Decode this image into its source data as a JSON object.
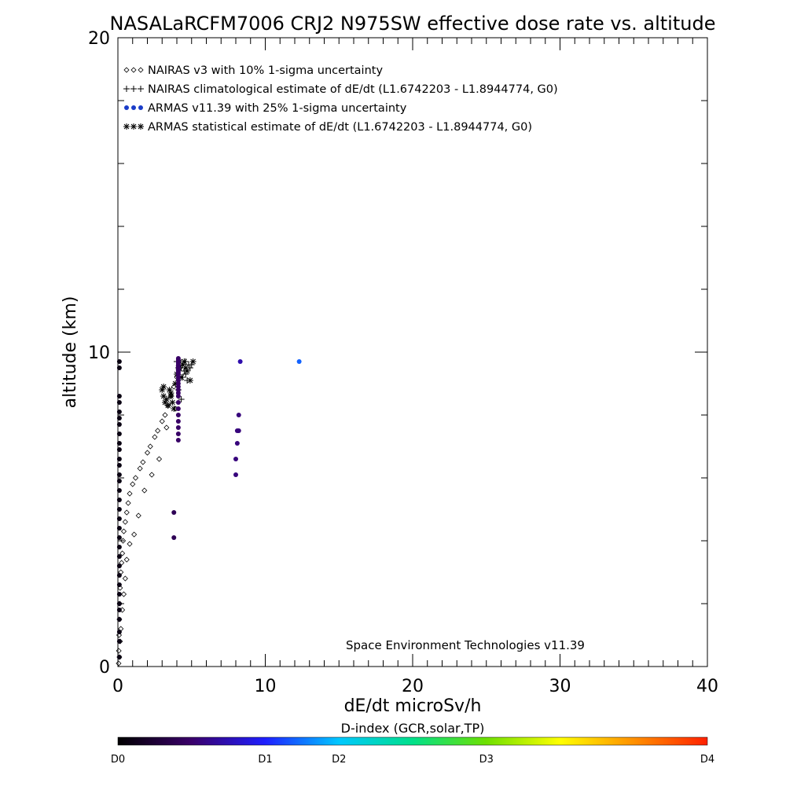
{
  "chart_data": {
    "type": "scatter",
    "title": "NASALaRCFM7006  CRJ2 N975SW effective dose rate vs. altitude",
    "xlabel": "dE/dt microSv/h",
    "ylabel": "altitude (km)",
    "xlim": [
      0,
      40
    ],
    "ylim": [
      0,
      20
    ],
    "x_ticks": [
      0,
      10,
      20,
      30,
      40
    ],
    "x_tick_labels": [
      "0",
      "10",
      "20",
      "30",
      "40"
    ],
    "y_ticks": [
      0,
      10,
      20
    ],
    "y_tick_labels": [
      "0",
      "10",
      "20"
    ],
    "grid": false,
    "legend_position": "top-left",
    "annotation": "Space Environment Technologies v11.39",
    "legend": [
      {
        "marker": "diamond",
        "symbol": "◇◇◇",
        "label": "NAIRAS v3 with 10% 1-sigma uncertainty"
      },
      {
        "marker": "plus",
        "symbol": "+++",
        "label": "NAIRAS climatological estimate of dE/dt (L1.6742203 - L1.8944774, G0)"
      },
      {
        "marker": "dot",
        "symbol": "●●●",
        "label": "ARMAS v11.39 with 25% 1-sigma uncertainty"
      },
      {
        "marker": "asterisk",
        "symbol": "***",
        "label": "ARMAS statistical estimate of dE/dt (L1.6742203 - L1.8944774, G0)"
      }
    ],
    "colorbar": {
      "title": "D-index (GCR,solar,TP)",
      "labels": [
        {
          "text": "D0",
          "value": 0
        },
        {
          "text": "D1",
          "value": 0.25
        },
        {
          "text": "D2",
          "value": 0.375
        },
        {
          "text": "D3",
          "value": 0.625
        },
        {
          "text": "D4",
          "value": 1
        }
      ],
      "colors": [
        "#000000",
        "#3a006a",
        "#1e1eff",
        "#00c8ff",
        "#00e08a",
        "#6ee000",
        "#ffff00",
        "#ff9000",
        "#ff2000"
      ]
    },
    "series": [
      {
        "name": "NAIRAS v3 with 10% 1-sigma uncertainty",
        "marker": "diamond",
        "x": [
          0.05,
          0.06,
          0.08,
          0.1,
          0.12,
          0.15,
          0.2,
          0.25,
          0.3,
          0.35,
          0.4,
          0.5,
          0.6,
          0.7,
          0.8,
          1.0,
          1.2,
          1.5,
          1.7,
          2.0,
          2.2,
          2.5,
          2.7,
          3.0,
          3.2,
          3.4,
          3.6,
          3.8,
          4.0,
          4.2,
          0.1,
          0.15,
          0.2,
          0.3,
          0.4,
          0.5,
          0.6,
          0.8,
          1.1,
          1.4,
          1.8,
          2.3,
          2.8,
          3.3,
          3.9
        ],
        "y": [
          0.1,
          0.5,
          1.0,
          1.5,
          2.0,
          2.5,
          3.0,
          3.3,
          3.6,
          4.0,
          4.3,
          4.6,
          4.9,
          5.2,
          5.5,
          5.8,
          6.0,
          6.3,
          6.5,
          6.8,
          7.0,
          7.3,
          7.5,
          7.8,
          8.0,
          8.3,
          8.6,
          8.9,
          9.2,
          9.5,
          0.3,
          0.8,
          1.2,
          1.8,
          2.3,
          2.8,
          3.4,
          3.9,
          4.2,
          4.8,
          5.6,
          6.1,
          6.6,
          7.6,
          8.2
        ]
      },
      {
        "name": "NAIRAS climatological estimate of dE/dt (L1.6742203 - L1.8944774, G0)",
        "marker": "plus",
        "x": [
          4.0,
          4.2,
          4.3,
          4.5,
          4.6,
          4.8,
          4.9,
          5.0,
          4.4,
          4.7,
          4.1,
          4.3,
          4.6
        ],
        "y": [
          9.7,
          9.6,
          9.5,
          9.4,
          9.7,
          9.6,
          9.5,
          9.6,
          9.2,
          9.1,
          8.8,
          8.5,
          9.3
        ]
      },
      {
        "name": "ARMAS statistical estimate of dE/dt (L1.6742203 - L1.8944774, G0)",
        "marker": "asterisk",
        "x": [
          3.0,
          3.1,
          3.2,
          3.3,
          3.5,
          3.6,
          3.7,
          3.8,
          4.0,
          4.1,
          4.2,
          4.4,
          4.5,
          4.7,
          4.9,
          5.1,
          3.4,
          3.9,
          4.3,
          4.6,
          3.1,
          3.6
        ],
        "y": [
          8.8,
          8.6,
          8.4,
          8.5,
          8.8,
          8.6,
          8.4,
          8.2,
          9.3,
          9.5,
          9.7,
          9.6,
          9.7,
          9.4,
          9.1,
          9.7,
          8.3,
          9.0,
          9.2,
          9.5,
          8.9,
          8.7
        ]
      },
      {
        "name": "ARMAS v11.39 with 25% 1-sigma uncertainty",
        "marker": "dot",
        "x": [
          0.1,
          0.1,
          0.1,
          0.1,
          0.1,
          0.1,
          0.1,
          0.1,
          0.1,
          0.1,
          0.1,
          0.1,
          0.1,
          0.1,
          0.1,
          0.1,
          0.1,
          0.1,
          0.1,
          0.1,
          0.1,
          0.1,
          0.1,
          0.1,
          0.1,
          0.1,
          0.1,
          0.1,
          0.1,
          0.1,
          0.1,
          0.1,
          4.1,
          4.1,
          4.1,
          4.1,
          4.1,
          4.1,
          4.1,
          4.1,
          4.1,
          4.1,
          4.1,
          4.1,
          4.1,
          4.1,
          4.1,
          4.1,
          4.1,
          4.1,
          4.1,
          4.1,
          4.1,
          4.1,
          4.1,
          4.1,
          4.1,
          3.8,
          3.8,
          8.0,
          8.0,
          8.1,
          8.1,
          8.2,
          8.2,
          8.3,
          12.3
        ],
        "y": [
          0.3,
          0.8,
          1.1,
          1.5,
          1.8,
          2.0,
          2.3,
          2.6,
          2.9,
          3.2,
          3.5,
          3.8,
          4.1,
          4.4,
          4.7,
          5.0,
          5.3,
          5.6,
          5.9,
          6.1,
          6.4,
          6.6,
          6.9,
          7.1,
          7.4,
          7.7,
          7.9,
          8.1,
          8.4,
          8.6,
          9.5,
          9.7,
          7.2,
          7.4,
          7.6,
          7.8,
          8.0,
          8.2,
          8.4,
          8.6,
          8.7,
          8.8,
          8.9,
          9.0,
          9.1,
          9.2,
          9.3,
          9.35,
          9.4,
          9.45,
          9.5,
          9.55,
          9.6,
          9.65,
          9.7,
          9.75,
          9.8,
          4.1,
          4.9,
          6.1,
          6.6,
          7.1,
          7.5,
          7.5,
          8.0,
          9.7,
          9.7
        ],
        "d_index": [
          0.02,
          0.02,
          0.02,
          0.02,
          0.02,
          0.02,
          0.02,
          0.02,
          0.02,
          0.02,
          0.02,
          0.02,
          0.02,
          0.02,
          0.02,
          0.02,
          0.02,
          0.02,
          0.02,
          0.02,
          0.02,
          0.02,
          0.02,
          0.02,
          0.02,
          0.02,
          0.02,
          0.02,
          0.02,
          0.02,
          0.02,
          0.02,
          0.12,
          0.12,
          0.12,
          0.12,
          0.12,
          0.12,
          0.12,
          0.12,
          0.12,
          0.12,
          0.12,
          0.12,
          0.12,
          0.12,
          0.12,
          0.12,
          0.12,
          0.12,
          0.12,
          0.12,
          0.12,
          0.12,
          0.12,
          0.12,
          0.12,
          0.1,
          0.1,
          0.14,
          0.14,
          0.14,
          0.14,
          0.14,
          0.14,
          0.18,
          0.3
        ]
      }
    ]
  }
}
